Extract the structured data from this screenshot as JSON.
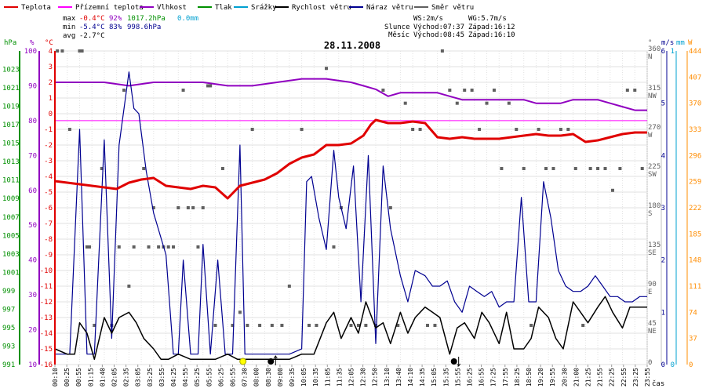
{
  "legend": [
    {
      "label": "Teplota",
      "color": "#e00000"
    },
    {
      "label": "Přízemní teplota",
      "color": "#ff00ff"
    },
    {
      "label": "Vlhkost",
      "color": "#9000c0"
    },
    {
      "label": "Tlak",
      "color": "#009000"
    },
    {
      "label": "Srážky",
      "color": "#00a0d0"
    },
    {
      "label": "Rychlost větru",
      "color": "#000000"
    },
    {
      "label": "Náraz větru",
      "color": "#000090"
    },
    {
      "label": "Směr větru",
      "color": "#606060"
    }
  ],
  "stats": {
    "max": {
      "label": "max",
      "temp": "-0.4°C",
      "hum": "92%",
      "press": "1017.2hPa",
      "rain": "0.0mm"
    },
    "min": {
      "label": "min",
      "temp": "-5.4°C",
      "hum": "83%",
      "press": "998.6hPa"
    },
    "avg": {
      "label": "avg",
      "temp": "-2.7°C"
    }
  },
  "wind_info": {
    "ws": "WS:2m/s",
    "wg": "WG:5.7m/s"
  },
  "sun": {
    "label": "Slunce",
    "rise": "Východ:07:37",
    "set": "Západ:16:12"
  },
  "moon": {
    "label": "Měsíc",
    "rise": "Východ:08:45",
    "set": "Západ:16:10"
  },
  "title": "28.11.2008",
  "chart_data": {
    "type": "line",
    "title": "28.11.2008",
    "xlabel": "čas",
    "x_ticks": [
      "00:10",
      "00:25",
      "00:55",
      "01:15",
      "01:40",
      "02:05",
      "02:35",
      "03:05",
      "03:25",
      "03:55",
      "04:25",
      "04:55",
      "05:25",
      "05:55",
      "06:25",
      "06:55",
      "07:30",
      "08:00",
      "08:30",
      "09:00",
      "09:35",
      "10:05",
      "10:35",
      "11:05",
      "11:35",
      "12:05",
      "12:30",
      "12:50",
      "13:10",
      "13:40",
      "14:10",
      "14:35",
      "15:05",
      "15:35",
      "15:55",
      "16:25",
      "16:55",
      "17:25",
      "17:55",
      "18:25",
      "18:50",
      "19:20",
      "19:55",
      "20:30",
      "21:00",
      "21:25",
      "21:55",
      "22:25",
      "22:55",
      "23:25",
      "23:55"
    ],
    "axes": {
      "pressure": {
        "unit": "hPa",
        "min": 991,
        "max": 1025,
        "ticks": [
          "991",
          "993",
          "995",
          "997",
          "999",
          "1001",
          "1003",
          "1005",
          "1007",
          "1009",
          "1011",
          "1013",
          "1015",
          "1017",
          "1019",
          "1021",
          "1023"
        ]
      },
      "humidity": {
        "unit": "%",
        "min": 10,
        "max": 100,
        "ticks": [
          "10",
          "20",
          "30",
          "40",
          "50",
          "60",
          "70",
          "80",
          "90",
          "100"
        ]
      },
      "temperature": {
        "unit": "°C",
        "min": -16,
        "max": 4,
        "ticks": [
          "-16",
          "-15",
          "-14",
          "-13",
          "-12",
          "-11",
          "-10",
          "-9",
          "-8",
          "-7",
          "-6",
          "-5",
          "-4",
          "-3",
          "-2",
          "-1",
          "0",
          "1",
          "2",
          "3",
          "4"
        ]
      },
      "wind_direction": {
        "unit": "°",
        "min": 0,
        "max": 360,
        "ticks": [
          {
            "deg": "0",
            "dir": ""
          },
          {
            "deg": "45",
            "dir": "NE"
          },
          {
            "deg": "90",
            "dir": "E"
          },
          {
            "deg": "135",
            "dir": "SE"
          },
          {
            "deg": "180",
            "dir": "S"
          },
          {
            "deg": "225",
            "dir": "SW"
          },
          {
            "deg": "270",
            "dir": "W"
          },
          {
            "deg": "315",
            "dir": "NW"
          },
          {
            "deg": "360",
            "dir": "N"
          }
        ]
      },
      "wind_speed": {
        "unit": "m/s",
        "min": 0,
        "max": 6,
        "ticks": [
          "0",
          "1",
          "2",
          "3",
          "4",
          "5",
          "6"
        ]
      },
      "rain": {
        "unit": "mm",
        "min": 0,
        "max": 1,
        "ticks": [
          "0",
          "1"
        ]
      },
      "radiation": {
        "unit": "W",
        "min": 0,
        "max": 444,
        "ticks": [
          "0",
          "37",
          "74",
          "111",
          "148",
          "185",
          "222",
          "259",
          "296",
          "333",
          "370",
          "407",
          "444"
        ]
      }
    },
    "series": [
      {
        "name": "Teplota",
        "unit": "°C",
        "color": "#e00000",
        "x": [
          0,
          0.5,
          1,
          1.5,
          2,
          2.5,
          3,
          3.5,
          4,
          4.5,
          5,
          5.5,
          6,
          6.5,
          7,
          7.5,
          8,
          8.5,
          9,
          9.5,
          10,
          10.5,
          11,
          11.5,
          12,
          12.5,
          12.8,
          13,
          13.5,
          14,
          14.5,
          15,
          15.5,
          16,
          16.5,
          17,
          17.5,
          18,
          18.5,
          19,
          19.5,
          20,
          20.5,
          21,
          21.5,
          22,
          22.5,
          23,
          23.5,
          24
        ],
        "values": [
          -4.3,
          -4.4,
          -4.5,
          -4.6,
          -4.7,
          -4.8,
          -4.4,
          -4.2,
          -4.1,
          -4.6,
          -4.7,
          -4.8,
          -4.6,
          -4.7,
          -5.4,
          -4.6,
          -4.4,
          -4.2,
          -3.8,
          -3.2,
          -2.8,
          -2.6,
          -2.0,
          -2.0,
          -1.9,
          -1.4,
          -0.7,
          -0.4,
          -0.6,
          -0.6,
          -0.5,
          -0.6,
          -1.5,
          -1.6,
          -1.5,
          -1.6,
          -1.6,
          -1.6,
          -1.5,
          -1.4,
          -1.3,
          -1.4,
          -1.4,
          -1.3,
          -1.8,
          -1.7,
          -1.5,
          -1.3,
          -1.2,
          -1.2
        ]
      },
      {
        "name": "Vlhkost",
        "unit": "%",
        "color": "#9000c0",
        "x": [
          0,
          2,
          3,
          4,
          5,
          6,
          7,
          8,
          9,
          10,
          11,
          12,
          12.5,
          13,
          13.5,
          14,
          15,
          15.5,
          16,
          16.5,
          17,
          17.5,
          18,
          18.5,
          19,
          19.5,
          20,
          20.5,
          21,
          21.5,
          22,
          22.5,
          23,
          23.5,
          24
        ],
        "values": [
          91,
          91,
          90,
          91,
          91,
          91,
          90,
          90,
          91,
          92,
          92,
          91,
          90,
          89,
          87,
          88,
          88,
          88,
          87,
          86,
          86,
          86,
          86,
          86,
          86,
          85,
          85,
          85,
          86,
          86,
          86,
          85,
          84,
          83,
          83
        ]
      },
      {
        "name": "Přízemní teplota",
        "unit": "%",
        "color": "#ff00ff",
        "x": [
          0,
          24
        ],
        "values": [
          80,
          80
        ]
      },
      {
        "name": "Směr větru",
        "unit": "°",
        "color": "#606060",
        "x": [
          0.1,
          0.3,
          0.6,
          1.0,
          1.1,
          1.3,
          1.4,
          1.6,
          1.9,
          2.3,
          2.6,
          2.8,
          3.0,
          3.2,
          3.6,
          3.8,
          4.0,
          4.2,
          4.4,
          4.6,
          4.8,
          5.0,
          5.2,
          5.4,
          5.6,
          5.8,
          6.0,
          6.2,
          6.3,
          6.5,
          6.8,
          7.2,
          7.5,
          7.8,
          8.0,
          8.3,
          8.8,
          9.2,
          9.5,
          10.0,
          10.3,
          10.6,
          11.0,
          11.3,
          11.6,
          12.0,
          12.3,
          12.6,
          13.0,
          13.3,
          13.6,
          13.9,
          14.2,
          14.5,
          14.8,
          15.1,
          15.4,
          15.7,
          16.0,
          16.3,
          16.6,
          16.9,
          17.2,
          17.5,
          17.8,
          18.1,
          18.4,
          18.7,
          19.0,
          19.3,
          19.6,
          19.9,
          20.2,
          20.5,
          20.8,
          21.1,
          21.4,
          21.7,
          22.0,
          22.3,
          22.6,
          22.9,
          23.2,
          23.5,
          23.8
        ],
        "values": [
          360,
          360,
          270,
          360,
          360,
          135,
          135,
          45,
          225,
          45,
          135,
          315,
          90,
          135,
          225,
          135,
          180,
          135,
          135,
          135,
          135,
          180,
          315,
          180,
          180,
          135,
          180,
          320,
          320,
          45,
          225,
          45,
          60,
          45,
          270,
          45,
          45,
          45,
          90,
          270,
          45,
          45,
          340,
          135,
          180,
          45,
          45,
          45,
          45,
          315,
          180,
          45,
          300,
          270,
          270,
          45,
          45,
          360,
          315,
          300,
          315,
          315,
          270,
          300,
          315,
          225,
          300,
          270,
          225,
          45,
          270,
          225,
          225,
          270,
          270,
          225,
          45,
          225,
          225,
          225,
          200,
          225,
          315,
          315,
          225
        ]
      },
      {
        "name": "Náraz větru",
        "unit": "m/s",
        "color": "#000090",
        "x": [
          0,
          0.3,
          0.6,
          1.0,
          1.3,
          1.6,
          2.0,
          2.3,
          2.6,
          3.0,
          3.2,
          3.4,
          3.7,
          4.0,
          4.5,
          4.8,
          5.0,
          5.2,
          5.5,
          5.8,
          6.0,
          6.3,
          6.6,
          6.9,
          7.2,
          7.5,
          7.7,
          7.9,
          8.0,
          8.3,
          8.6,
          9.0,
          9.5,
          10.0,
          10.2,
          10.4,
          10.7,
          11.0,
          11.3,
          11.5,
          11.8,
          12.1,
          12.4,
          12.7,
          13.0,
          13.3,
          13.6,
          14.0,
          14.3,
          14.6,
          15.0,
          15.3,
          15.6,
          15.9,
          16.2,
          16.5,
          16.8,
          17.1,
          17.4,
          17.7,
          18.0,
          18.3,
          18.6,
          18.9,
          19.2,
          19.5,
          19.8,
          20.1,
          20.4,
          20.7,
          21.0,
          21.3,
          21.6,
          21.9,
          22.2,
          22.5,
          22.8,
          23.1,
          23.4,
          23.7,
          24.0
        ],
        "values": [
          0.2,
          0.2,
          0.2,
          4.5,
          0.2,
          0.2,
          4.3,
          0.5,
          4.2,
          5.6,
          4.9,
          4.8,
          3.7,
          2.9,
          2.1,
          0.2,
          0.2,
          2.0,
          0.2,
          0.2,
          2.3,
          0.2,
          2.0,
          0.2,
          0.2,
          4.2,
          0.2,
          0.2,
          0.2,
          0.2,
          0.2,
          0.2,
          0.2,
          0.3,
          3.5,
          3.6,
          2.8,
          2.2,
          4.1,
          3.2,
          2.6,
          3.8,
          1.2,
          4.0,
          0.4,
          3.8,
          2.6,
          1.7,
          1.2,
          1.8,
          1.7,
          1.5,
          1.5,
          1.6,
          1.2,
          1.0,
          1.5,
          1.4,
          1.3,
          1.4,
          1.1,
          1.2,
          1.2,
          3.2,
          1.2,
          1.2,
          3.5,
          2.8,
          1.8,
          1.5,
          1.4,
          1.4,
          1.5,
          1.7,
          1.5,
          1.3,
          1.3,
          1.2,
          1.2,
          1.3,
          1.3
        ]
      },
      {
        "name": "Rychlost větru",
        "unit": "m/s",
        "color": "#000000",
        "x": [
          0,
          0.5,
          0.8,
          1.0,
          1.3,
          1.6,
          2.0,
          2.3,
          2.6,
          3.0,
          3.3,
          3.6,
          4.0,
          4.3,
          4.6,
          5.0,
          5.5,
          6.0,
          6.5,
          7.0,
          7.4,
          7.7,
          8.0,
          8.5,
          9.0,
          9.5,
          10.0,
          10.5,
          11.0,
          11.3,
          11.6,
          12.0,
          12.3,
          12.6,
          13.0,
          13.3,
          13.6,
          14.0,
          14.3,
          14.6,
          15.0,
          15.3,
          15.6,
          16.0,
          16.3,
          16.6,
          17.0,
          17.3,
          17.6,
          18.0,
          18.3,
          18.6,
          19.0,
          19.3,
          19.6,
          20.0,
          20.3,
          20.6,
          21.0,
          21.3,
          21.6,
          22.0,
          22.3,
          22.6,
          23.0,
          23.3,
          23.6,
          24.0
        ],
        "values": [
          0.3,
          0.2,
          0.2,
          0.8,
          0.6,
          0.1,
          0.9,
          0.6,
          0.9,
          1.0,
          0.8,
          0.5,
          0.3,
          0.1,
          0.1,
          0.2,
          0.1,
          0.1,
          0.1,
          0.2,
          0.1,
          0.1,
          0.1,
          0.1,
          0.1,
          0.1,
          0.2,
          0.2,
          0.8,
          1.0,
          0.5,
          0.9,
          0.6,
          1.2,
          0.7,
          0.8,
          0.4,
          1.0,
          0.6,
          0.9,
          1.1,
          1.0,
          0.9,
          0.2,
          0.7,
          0.8,
          0.5,
          1.0,
          0.8,
          0.4,
          1.0,
          0.3,
          0.3,
          0.5,
          1.1,
          0.9,
          0.5,
          0.3,
          1.2,
          1.0,
          0.8,
          1.1,
          1.3,
          1.0,
          0.7,
          1.1,
          1.1,
          1.1
        ]
      }
    ],
    "markers": [
      {
        "name": "sunrise",
        "time": 7.62,
        "symbol": "sun"
      },
      {
        "name": "moonrise",
        "time": 8.75,
        "symbol": "moon-up"
      },
      {
        "name": "moonset",
        "time": 16.17,
        "symbol": "moon-down"
      }
    ]
  }
}
